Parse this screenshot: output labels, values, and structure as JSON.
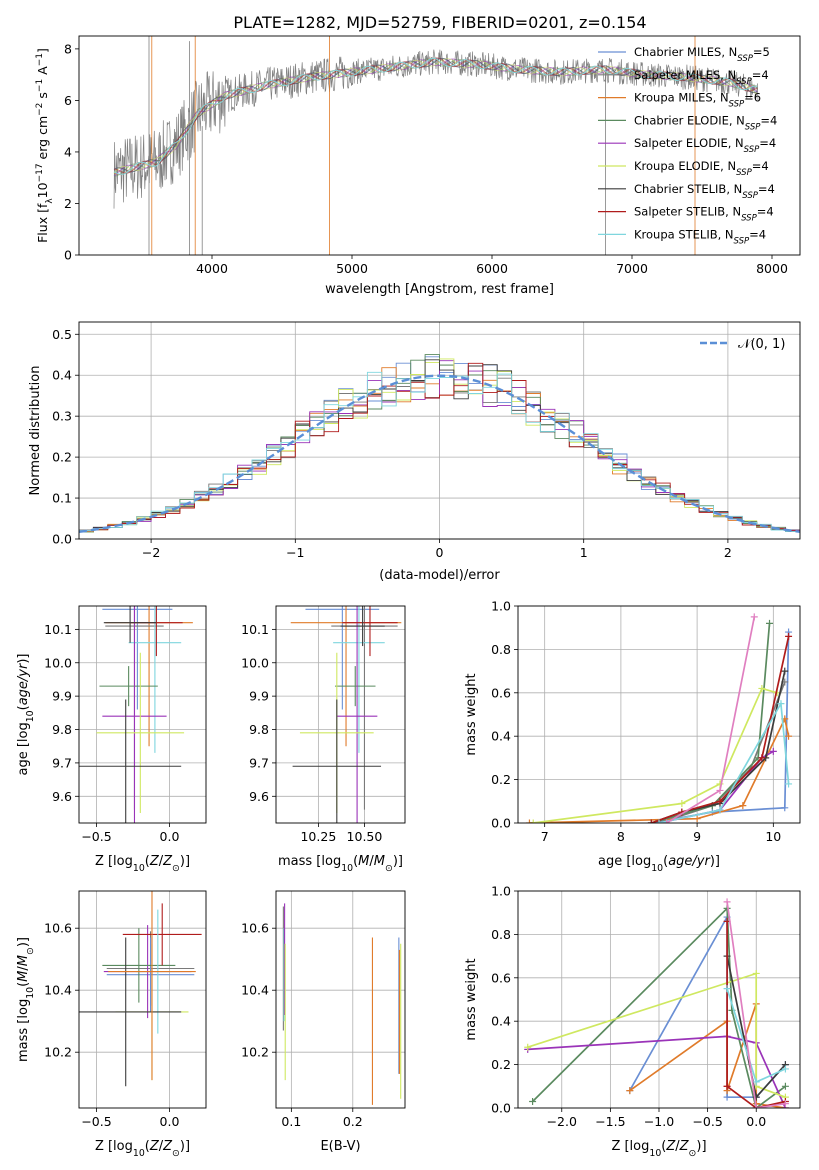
{
  "figure": {
    "title": "PLATE=1282, MJD=52759, FIBERID=0201, z=0.154"
  },
  "models": [
    {
      "name": "Chabrier MILES",
      "legend": "Chabrier MILES, N",
      "sub": "SSP",
      "n": "=5",
      "color": "#6a8fd4"
    },
    {
      "name": "Salpeter MILES",
      "legend": "Salpeter MILES, N",
      "sub": "SSP",
      "n": "=4",
      "color": "#7a7a7a"
    },
    {
      "name": "Kroupa MILES",
      "legend": "Kroupa MILES, N",
      "sub": "SSP",
      "n": "=6",
      "color": "#e07b2a"
    },
    {
      "name": "Chabrier ELODIE",
      "legend": "Chabrier ELODIE, N",
      "sub": "SSP",
      "n": "=4",
      "color": "#5a8a5f"
    },
    {
      "name": "Salpeter ELODIE",
      "legend": "Salpeter ELODIE, N",
      "sub": "SSP",
      "n": "=4",
      "color": "#9a33b8"
    },
    {
      "name": "Kroupa ELODIE",
      "legend": "Kroupa ELODIE, N",
      "sub": "SSP",
      "n": "=4",
      "color": "#cfe860"
    },
    {
      "name": "Chabrier STELIB",
      "legend": "Chabrier STELIB, N",
      "sub": "SSP",
      "n": "=4",
      "color": "#3c3c3c"
    },
    {
      "name": "Salpeter STELIB",
      "legend": "Salpeter STELIB, N",
      "sub": "SSP",
      "n": "=4",
      "color": "#b01c1c"
    },
    {
      "name": "Kroupa STELIB",
      "legend": "Kroupa STELIB, N",
      "sub": "SSP",
      "n": "=4",
      "color": "#7fd6de"
    }
  ],
  "chart_data": [
    {
      "id": "spectrum",
      "type": "line",
      "xlabel": "wavelength [Angstrom, rest frame]",
      "ylabel": "Flux [f",
      "xlim": [
        3050,
        8200
      ],
      "ylim": [
        0,
        8.5
      ],
      "xticks": [
        4000,
        5000,
        6000,
        7000,
        8000
      ],
      "yticks": [
        0,
        2,
        4,
        6,
        8
      ],
      "grid": false,
      "legend": "right",
      "continuum": {
        "x": [
          3300,
          3450,
          3600,
          3750,
          3900,
          4100,
          4400,
          4700,
          5000,
          5300,
          5600,
          5900,
          6200,
          6500,
          6800,
          7100,
          7400,
          7700,
          7900
        ],
        "y": [
          3.2,
          3.4,
          3.6,
          4.3,
          5.5,
          6.2,
          6.6,
          6.9,
          7.1,
          7.3,
          7.5,
          7.4,
          7.2,
          7.1,
          7.2,
          7.0,
          6.9,
          6.7,
          6.4
        ]
      },
      "spikes": [
        {
          "x": 3550,
          "y": [
            0,
            8.5
          ]
        },
        {
          "x": 3570,
          "y": [
            0,
            8.5
          ]
        },
        {
          "x": 3840,
          "y": [
            0,
            8.3
          ]
        },
        {
          "x": 3880,
          "y": [
            0,
            8.5
          ]
        },
        {
          "x": 3930,
          "y": [
            0,
            5.0
          ]
        },
        {
          "x": 4840,
          "y": [
            0,
            8.5
          ]
        },
        {
          "x": 6810,
          "y": [
            0,
            7.2
          ]
        },
        {
          "x": 7450,
          "y": [
            0,
            8.5
          ]
        }
      ]
    },
    {
      "id": "residuals",
      "type": "histogram",
      "xlabel": "(data-model)/error",
      "ylabel": "Normed distribution",
      "xlim": [
        -2.5,
        2.5
      ],
      "ylim": [
        0,
        0.53
      ],
      "xticks": [
        -2,
        -1,
        0,
        1,
        2
      ],
      "yticks": [
        0,
        0.1,
        0.2,
        0.3,
        0.4,
        0.5
      ],
      "grid": true,
      "legend": "top-right",
      "reference": {
        "label": "𝒩(0, 1)",
        "mean": 0,
        "sigma": 1,
        "color": "#5b8fd6"
      }
    },
    {
      "id": "age-vs-Z",
      "type": "errorbar",
      "xlabel": "Z [log",
      "ylabel": "age  [log",
      "xlim": [
        -0.62,
        0.25
      ],
      "ylim": [
        9.52,
        10.17
      ],
      "xticks": [
        -0.5,
        0.0
      ],
      "yticks": [
        9.6,
        9.7,
        9.8,
        9.9,
        10.0,
        10.1
      ],
      "grid": true,
      "points": [
        {
          "x": -0.22,
          "y": 10.16,
          "xerr": 0.24,
          "yerr": 0.3,
          "series": 0
        },
        {
          "x": -0.14,
          "y": 10.12,
          "xerr": 0.3,
          "yerr": 0.37,
          "series": 2
        },
        {
          "x": -0.24,
          "y": 10.11,
          "xerr": 0.2,
          "yerr": 0.55,
          "series": 1
        },
        {
          "x": -0.1,
          "y": 10.06,
          "xerr": 0.18,
          "yerr": 0.33,
          "series": 8
        },
        {
          "x": -0.28,
          "y": 9.93,
          "xerr": 0.2,
          "yerr": 0.06,
          "series": 3
        },
        {
          "x": -0.24,
          "y": 9.84,
          "xerr": 0.22,
          "yerr": 0.38,
          "series": 4
        },
        {
          "x": -0.2,
          "y": 9.79,
          "xerr": 0.3,
          "yerr": 0.24,
          "series": 5
        },
        {
          "x": -0.09,
          "y": 10.12,
          "xerr": 0.18,
          "yerr": 0.1,
          "series": 7
        },
        {
          "x": -0.27,
          "y": 10.12,
          "xerr": 0.18,
          "yerr": 0.06,
          "series": 6
        },
        {
          "x": -0.3,
          "y": 9.69,
          "xerr": 0.38,
          "yerr": 0.2,
          "series": 6
        }
      ]
    },
    {
      "id": "age-vs-mass",
      "type": "errorbar",
      "xlabel": "mass [log",
      "ylabel": "",
      "xlim": [
        10.02,
        10.72
      ],
      "ylim": [
        9.52,
        10.17
      ],
      "xticks": [
        10.25,
        10.5
      ],
      "yticks": [
        9.6,
        9.7,
        9.8,
        9.9,
        10.0,
        10.1
      ],
      "grid": true,
      "points": [
        {
          "x": 10.38,
          "y": 10.16,
          "xerr": 0.2,
          "yerr": 0.3,
          "series": 0
        },
        {
          "x": 10.4,
          "y": 10.12,
          "xerr": 0.3,
          "yerr": 0.37,
          "series": 2
        },
        {
          "x": 10.5,
          "y": 10.11,
          "xerr": 0.18,
          "yerr": 0.55,
          "series": 1
        },
        {
          "x": 10.47,
          "y": 10.06,
          "xerr": 0.14,
          "yerr": 0.33,
          "series": 8
        },
        {
          "x": 10.45,
          "y": 9.93,
          "xerr": 0.11,
          "yerr": 0.06,
          "series": 3
        },
        {
          "x": 10.46,
          "y": 9.84,
          "xerr": 0.11,
          "yerr": 0.38,
          "series": 4
        },
        {
          "x": 10.35,
          "y": 9.79,
          "xerr": 0.2,
          "yerr": 0.24,
          "series": 5
        },
        {
          "x": 10.53,
          "y": 10.12,
          "xerr": 0.15,
          "yerr": 0.1,
          "series": 7
        },
        {
          "x": 10.49,
          "y": 10.11,
          "xerr": 0.12,
          "yerr": 0.06,
          "series": 6
        },
        {
          "x": 10.35,
          "y": 9.69,
          "xerr": 0.24,
          "yerr": 0.2,
          "series": 6
        }
      ]
    },
    {
      "id": "weight-vs-age",
      "type": "line",
      "xlabel": "age  [log",
      "ylabel": "mass weight",
      "xlim": [
        6.65,
        10.35
      ],
      "ylim": [
        0,
        1.0
      ],
      "xticks": [
        7,
        8,
        9,
        10
      ],
      "yticks": [
        0,
        0.2,
        0.4,
        0.6,
        0.8,
        1.0
      ],
      "grid": true,
      "series": [
        {
          "model": 0,
          "x": [
            8.4,
            9.2,
            10.15,
            10.2
          ],
          "y": [
            0.0,
            0.05,
            0.07,
            0.88
          ]
        },
        {
          "model": 1,
          "x": [
            8.5,
            9.2,
            9.7,
            10.15
          ],
          "y": [
            0.0,
            0.08,
            0.25,
            0.65
          ]
        },
        {
          "model": 2,
          "x": [
            6.8,
            9.0,
            9.6,
            10.15,
            10.2
          ],
          "y": [
            0.0,
            0.02,
            0.08,
            0.48,
            0.4
          ]
        },
        {
          "model": 3,
          "x": [
            8.4,
            9.2,
            9.8,
            9.95
          ],
          "y": [
            0.0,
            0.08,
            0.3,
            0.92
          ]
        },
        {
          "model": 4,
          "x": [
            8.5,
            9.3,
            9.85,
            10.0
          ],
          "y": [
            0.0,
            0.06,
            0.3,
            0.33
          ]
        },
        {
          "model": 5,
          "x": [
            6.85,
            8.8,
            9.3,
            9.85,
            10.05
          ],
          "y": [
            0.0,
            0.09,
            0.18,
            0.62,
            0.6
          ]
        },
        {
          "model": 6,
          "x": [
            8.4,
            8.8,
            9.3,
            9.9,
            10.15
          ],
          "y": [
            0.0,
            0.05,
            0.09,
            0.3,
            0.7
          ]
        },
        {
          "model": 7,
          "x": [
            8.4,
            8.8,
            9.3,
            9.85,
            10.2
          ],
          "y": [
            0.0,
            0.05,
            0.1,
            0.3,
            0.86
          ]
        },
        {
          "model": 8,
          "x": [
            8.5,
            9.3,
            10.1,
            10.2
          ],
          "y": [
            0.0,
            0.06,
            0.55,
            0.18
          ]
        },
        {
          "model": -1,
          "color": "#e07fc0",
          "x": [
            8.6,
            9.3,
            9.75
          ],
          "y": [
            0.0,
            0.15,
            0.95
          ]
        }
      ]
    },
    {
      "id": "mass-vs-Z",
      "type": "errorbar",
      "xlabel": "Z [log",
      "ylabel": "mass [log",
      "xlim": [
        -0.62,
        0.25
      ],
      "ylim": [
        10.02,
        10.72
      ],
      "xticks": [
        -0.5,
        0.0
      ],
      "yticks": [
        10.2,
        10.4,
        10.6
      ],
      "grid": true,
      "points": [
        {
          "x": -0.13,
          "y": 10.47,
          "xerr": 0.3,
          "yerr": 0.12,
          "series": 1
        },
        {
          "x": -0.13,
          "y": 10.45,
          "xerr": 0.3,
          "yerr": 0.12,
          "series": 0
        },
        {
          "x": -0.15,
          "y": 10.46,
          "xerr": 0.3,
          "yerr": 0.15,
          "series": 4
        },
        {
          "x": -0.21,
          "y": 10.48,
          "xerr": 0.25,
          "yerr": 0.12,
          "series": 3
        },
        {
          "x": -0.12,
          "y": 10.33,
          "xerr": 0.25,
          "yerr": 0.22,
          "series": 5
        },
        {
          "x": -0.05,
          "y": 10.58,
          "xerr": 0.27,
          "yerr": 0.1,
          "series": 7
        },
        {
          "x": -0.08,
          "y": 10.46,
          "xerr": 0.15,
          "yerr": 0.2,
          "series": 8
        },
        {
          "x": -0.3,
          "y": 10.33,
          "xerr": 0.38,
          "yerr": 0.24,
          "series": 6
        },
        {
          "x": -0.12,
          "y": 10.46,
          "xerr": 0.3,
          "yerr": 0.35,
          "series": 2
        }
      ]
    },
    {
      "id": "mass-vs-ebv",
      "type": "errorbar",
      "xlabel": "E(B-V)",
      "ylabel": "",
      "xlim": [
        0.075,
        0.285
      ],
      "ylim": [
        10.02,
        10.72
      ],
      "xticks": [
        0.1,
        0.2
      ],
      "yticks": [
        10.2,
        10.4,
        10.6
      ],
      "grid": true,
      "points": [
        {
          "x": 0.087,
          "y": 10.47,
          "yerr": 0.2,
          "series": 1
        },
        {
          "x": 0.088,
          "y": 10.45,
          "yerr": 0.15,
          "series": 8
        },
        {
          "x": 0.089,
          "y": 10.5,
          "yerr": 0.18,
          "series": 4
        },
        {
          "x": 0.09,
          "y": 10.33,
          "yerr": 0.22,
          "series": 5
        },
        {
          "x": 0.232,
          "y": 10.3,
          "yerr": 0.27,
          "series": 2
        },
        {
          "x": 0.275,
          "y": 10.35,
          "yerr": 0.22,
          "series": 0
        },
        {
          "x": 0.278,
          "y": 10.3,
          "yerr": 0.25,
          "series": 5
        },
        {
          "x": 0.276,
          "y": 10.33,
          "yerr": 0.2,
          "series": 2
        }
      ]
    },
    {
      "id": "weight-vs-Z",
      "type": "line",
      "xlabel": "Z [log",
      "ylabel": "mass weight",
      "xlim": [
        -2.45,
        0.45
      ],
      "ylim": [
        0,
        1.0
      ],
      "xticks": [
        -2.0,
        -1.5,
        -1.0,
        -0.5,
        0.0
      ],
      "yticks": [
        0,
        0.2,
        0.4,
        0.6,
        0.8,
        1.0
      ],
      "grid": true,
      "series": [
        {
          "model": 0,
          "x": [
            -1.3,
            -0.3,
            -0.3,
            0.0,
            0.3
          ],
          "y": [
            0.08,
            0.88,
            0.05,
            0.05,
            0.2
          ]
        },
        {
          "model": 2,
          "x": [
            -1.3,
            -0.3,
            -0.3,
            0.0,
            0.0,
            0.3
          ],
          "y": [
            0.08,
            0.4,
            0.08,
            0.48,
            0.02,
            0.0
          ]
        },
        {
          "model": 3,
          "x": [
            -2.3,
            -0.3,
            -0.25,
            0.0,
            0.3
          ],
          "y": [
            0.03,
            0.92,
            0.45,
            0.0,
            0.1
          ]
        },
        {
          "model": 4,
          "x": [
            -2.35,
            -0.3,
            0.0,
            0.3
          ],
          "y": [
            0.27,
            0.33,
            0.3,
            0.0
          ]
        },
        {
          "model": 5,
          "x": [
            -2.35,
            0.0,
            0.0,
            0.3
          ],
          "y": [
            0.28,
            0.62,
            0.1,
            0.05
          ]
        },
        {
          "model": 6,
          "x": [
            -0.3,
            0.0,
            0.3
          ],
          "y": [
            0.7,
            0.05,
            0.2
          ]
        },
        {
          "model": 7,
          "x": [
            -0.3,
            -0.3,
            -0.3,
            0.0,
            0.3
          ],
          "y": [
            0.86,
            0.1,
            0.1,
            0.0,
            0.03
          ]
        },
        {
          "model": 8,
          "x": [
            -0.3,
            0.0,
            0.3
          ],
          "y": [
            0.55,
            0.12,
            0.18
          ]
        },
        {
          "model": -1,
          "color": "#e07fc0",
          "x": [
            -0.3,
            0.0,
            0.3
          ],
          "y": [
            0.95,
            0.0,
            0.02
          ]
        }
      ]
    }
  ]
}
